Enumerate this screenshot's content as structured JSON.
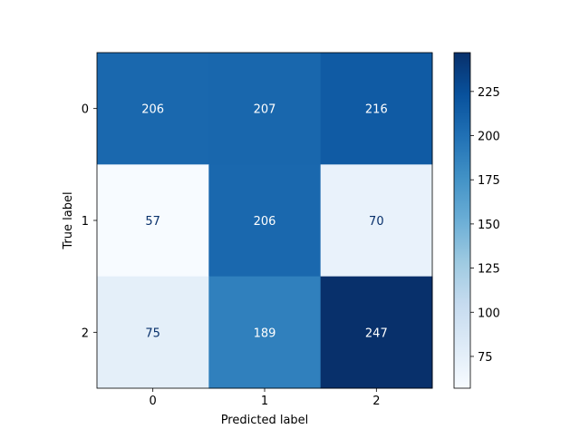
{
  "chart_data": {
    "type": "heatmap",
    "title": "",
    "xlabel": "Predicted label",
    "ylabel": "True label",
    "x_categories": [
      "0",
      "1",
      "2"
    ],
    "y_categories": [
      "0",
      "1",
      "2"
    ],
    "matrix": [
      [
        206,
        207,
        216
      ],
      [
        57,
        206,
        70
      ],
      [
        75,
        189,
        247
      ]
    ],
    "colormap": "Blues",
    "colorbar": {
      "min": 57,
      "max": 247,
      "ticks": [
        75,
        100,
        125,
        150,
        175,
        200,
        225
      ]
    },
    "grid": false
  }
}
